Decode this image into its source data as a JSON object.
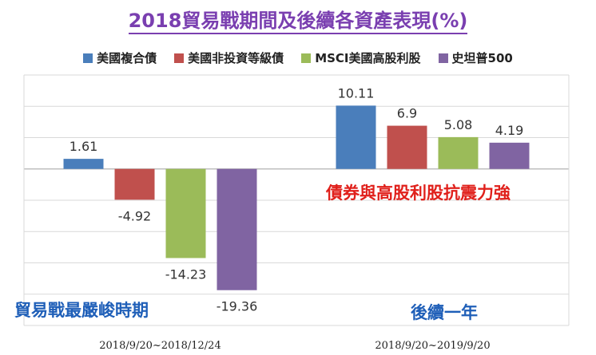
{
  "chart_data": {
    "type": "bar",
    "title": "2018貿易戰期間及後續各資產表現(%)",
    "categories": [
      "2018/9/20~2018/12/24",
      "2018/9/20~2019/9/20"
    ],
    "series": [
      {
        "name": "美國複合債",
        "color": "#4a7ebb",
        "values": [
          1.61,
          10.11
        ],
        "labels": [
          "1.61",
          "10.11"
        ]
      },
      {
        "name": "美國非投資等級債",
        "color": "#c0504d",
        "values": [
          -4.92,
          6.9
        ],
        "labels": [
          "-4.92",
          "6.9"
        ]
      },
      {
        "name": "MSCI美國高股利股",
        "color": "#9bbb59",
        "values": [
          -14.23,
          5.08
        ],
        "labels": [
          "-14.23",
          "5.08"
        ]
      },
      {
        "name": "史坦普500",
        "color": "#8064a2",
        "values": [
          -19.36,
          4.19
        ],
        "labels": [
          "-19.36",
          "4.19"
        ]
      }
    ],
    "ylim": [
      -25,
      15
    ],
    "grid": true,
    "legend": "top"
  },
  "annotations": {
    "bond_resilience": "債券與高股利股抗震力強",
    "trade_war_period": "貿易戰最嚴峻時期",
    "following_year": "後續一年"
  }
}
